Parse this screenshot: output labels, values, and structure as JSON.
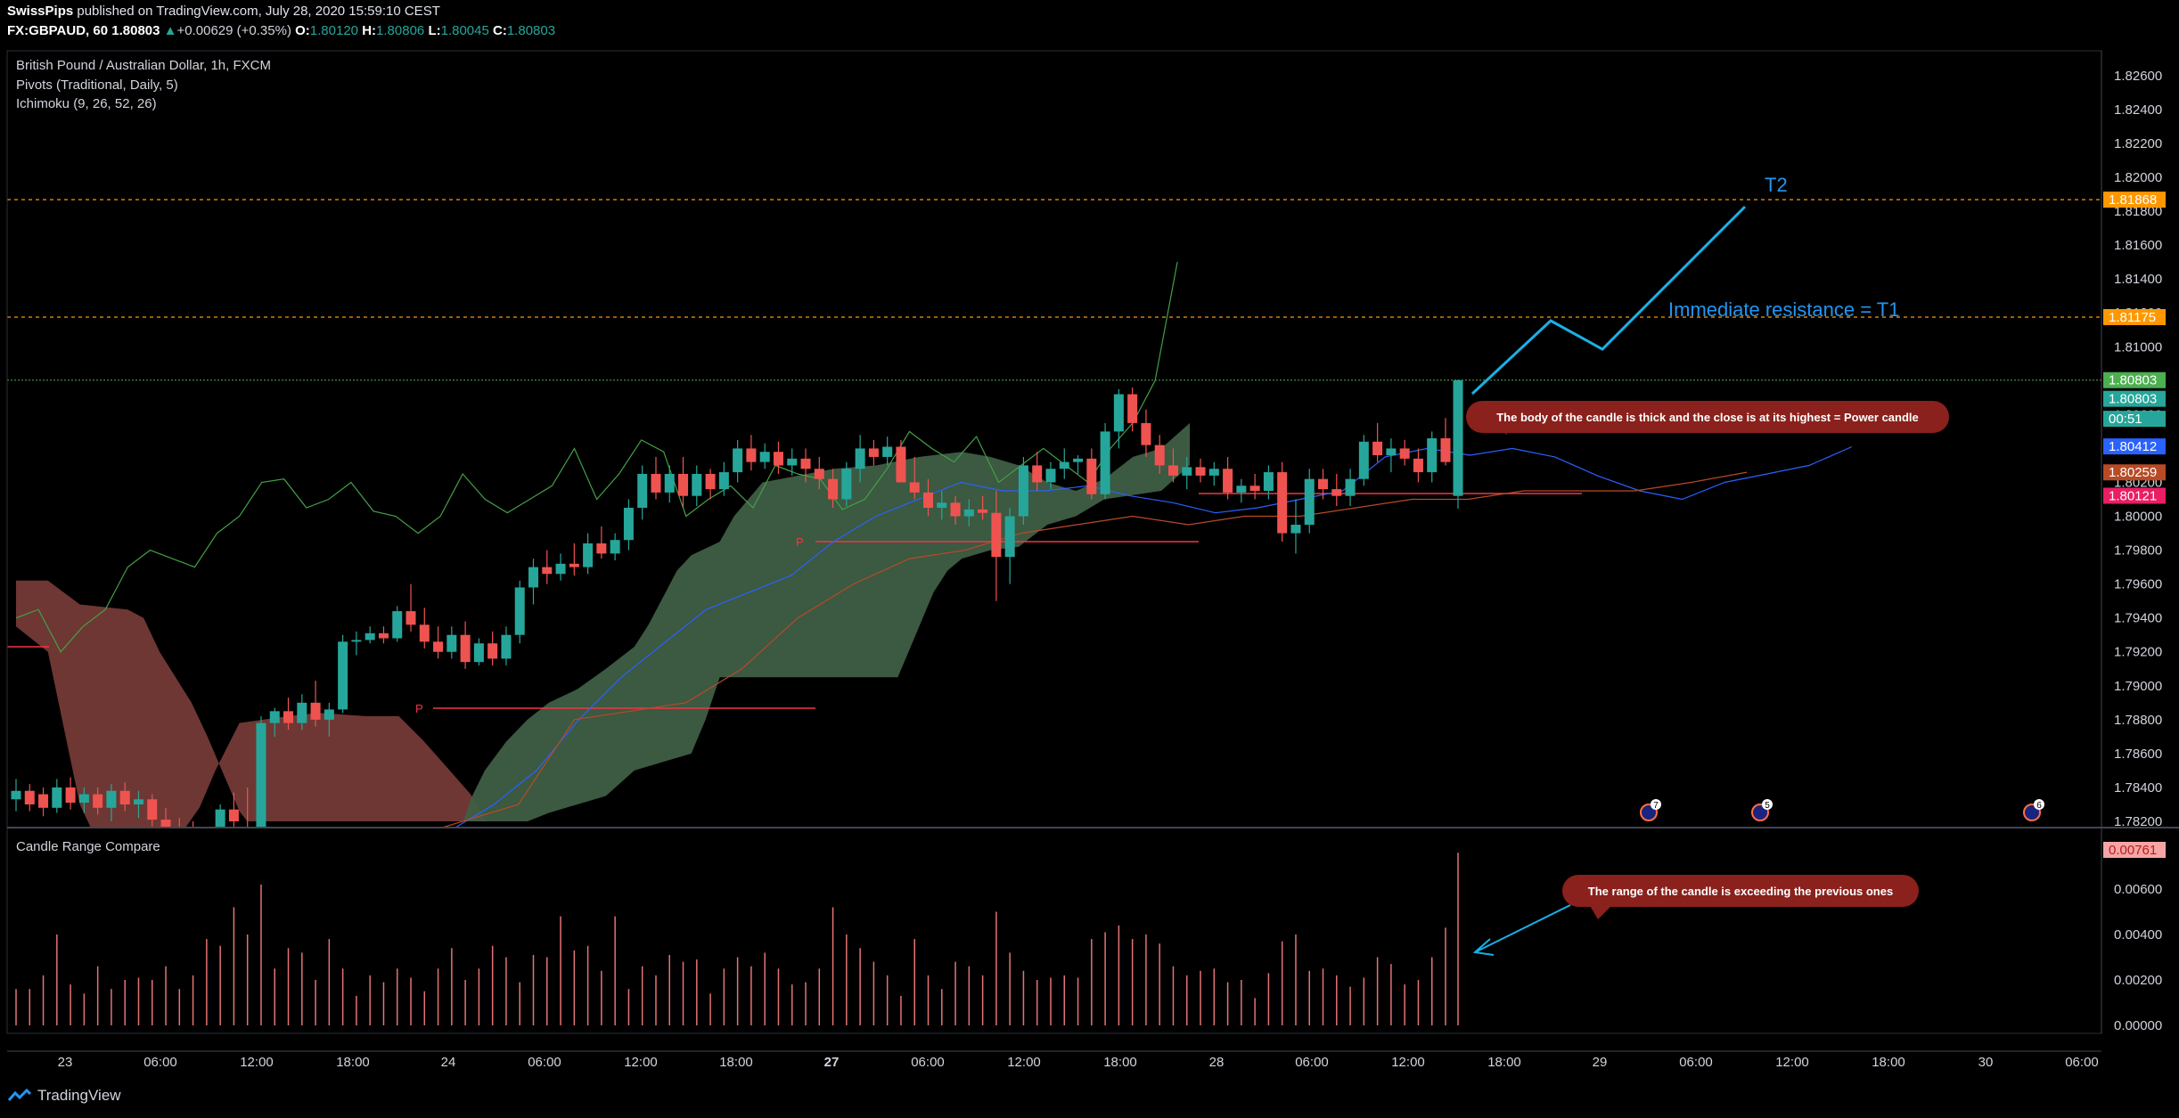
{
  "header": {
    "author": "SwissPips",
    "published_text": "published on TradingView.com, July 28, 2020 15:59:10 CEST",
    "symbol": "FX:GBPAUD, 60",
    "last": "1.80803",
    "change": "+0.00629 (+0.35%)",
    "o_label": "O:",
    "o": "1.80120",
    "h_label": "H:",
    "h": "1.80806",
    "l_label": "L:",
    "l": "1.80045",
    "c_label": "C:",
    "c": "1.80803"
  },
  "legend": {
    "title": "British Pound / Australian Dollar, 1h, FXCM",
    "pivots": "Pivots (Traditional, Daily, 5)",
    "ichimoku": "Ichimoku (9, 26, 52, 26)",
    "lower_title": "Candle Range Compare"
  },
  "colors": {
    "bull": "#26a69a",
    "bear": "#ef5350",
    "tenkan": "#2962ff",
    "kijun": "#b84a26",
    "chikou": "#43a047",
    "cloud_bull": "#3f5e45",
    "cloud_bear": "#7a3d39",
    "annotation_cyan": "#1ab0e6",
    "annotation_text": "#2196f3",
    "callout_bg": "#8a211c",
    "pivot_line": "#f23645",
    "axis_text": "#d1d4dc"
  },
  "footer": {
    "brand": "TradingView",
    "icon": "tradingview-logo-icon"
  },
  "chart_data": [
    {
      "type": "candlestick",
      "title": "British Pound / Australian Dollar, 1h, FXCM",
      "ylim": [
        1.782,
        1.827
      ],
      "y_ticks": [
        "1.82600",
        "1.82400",
        "1.82200",
        "1.82000",
        "1.81800",
        "1.81600",
        "1.81400",
        "1.81200",
        "1.81000",
        "1.80800",
        "1.80600",
        "1.80400",
        "1.80200",
        "1.80000",
        "1.79800",
        "1.79600",
        "1.79400",
        "1.79200",
        "1.79000",
        "1.78800",
        "1.78600",
        "1.78400",
        "1.78200"
      ],
      "x_ticks": [
        "23",
        "06:00",
        "12:00",
        "18:00",
        "24",
        "06:00",
        "12:00",
        "18:00",
        "27",
        "06:00",
        "12:00",
        "18:00",
        "28",
        "06:00",
        "12:00",
        "18:00",
        "29",
        "06:00",
        "12:00",
        "18:00",
        "30",
        "06:00"
      ],
      "price_labels": [
        {
          "value": "1.81868",
          "price": 1.81868,
          "color": "#ff9800"
        },
        {
          "value": "1.81175",
          "price": 1.81175,
          "color": "#ff9800"
        },
        {
          "value": "1.80803",
          "price": 1.80803,
          "color": "#4caf50"
        },
        {
          "value": "1.80803",
          "price": 1.80693,
          "color": "#26a69a"
        },
        {
          "value": "00:51",
          "price": 1.80575,
          "color": "#26a69a"
        },
        {
          "value": "1.80412",
          "price": 1.80412,
          "color": "#2962ff"
        },
        {
          "value": "1.80259",
          "price": 1.80259,
          "color": "#b84a26"
        },
        {
          "value": "1.80121",
          "price": 1.80121,
          "color": "#e91e63"
        }
      ],
      "candles": [
        [
          1.7833,
          1.7845,
          1.7826,
          1.7838
        ],
        [
          1.7838,
          1.7842,
          1.7826,
          1.783
        ],
        [
          1.7836,
          1.784,
          1.7823,
          1.7828
        ],
        [
          1.7828,
          1.7845,
          1.7825,
          1.784
        ],
        [
          1.784,
          1.7846,
          1.7827,
          1.7831
        ],
        [
          1.7831,
          1.784,
          1.7825,
          1.7836
        ],
        [
          1.7836,
          1.784,
          1.7824,
          1.7828
        ],
        [
          1.7828,
          1.7842,
          1.782,
          1.7838
        ],
        [
          1.7838,
          1.7843,
          1.7826,
          1.783
        ],
        [
          1.783,
          1.7838,
          1.7822,
          1.7833
        ],
        [
          1.7833,
          1.7836,
          1.7817,
          1.7821
        ],
        [
          1.7821,
          1.7828,
          1.781,
          1.7815
        ],
        [
          1.7815,
          1.7822,
          1.7805,
          1.7812
        ],
        [
          1.7812,
          1.782,
          1.78,
          1.7805
        ],
        [
          1.7805,
          1.7813,
          1.7798,
          1.781
        ],
        [
          1.781,
          1.783,
          1.7808,
          1.7827
        ],
        [
          1.7827,
          1.7837,
          1.7815,
          1.782
        ],
        [
          1.7815,
          1.784,
          1.7805,
          1.781
        ],
        [
          1.781,
          1.7882,
          1.7808,
          1.7878
        ],
        [
          1.7878,
          1.7887,
          1.787,
          1.7885
        ],
        [
          1.7885,
          1.7893,
          1.7874,
          1.7878
        ],
        [
          1.7878,
          1.7895,
          1.7874,
          1.789
        ],
        [
          1.789,
          1.7903,
          1.7876,
          1.788
        ],
        [
          1.788,
          1.789,
          1.787,
          1.7886
        ],
        [
          1.7886,
          1.793,
          1.7884,
          1.7926
        ],
        [
          1.7926,
          1.7932,
          1.7918,
          1.7927
        ],
        [
          1.7927,
          1.7935,
          1.7925,
          1.7931
        ],
        [
          1.7931,
          1.7935,
          1.7925,
          1.7928
        ],
        [
          1.7928,
          1.7947,
          1.7926,
          1.7944
        ],
        [
          1.7944,
          1.796,
          1.7932,
          1.7936
        ],
        [
          1.7936,
          1.7946,
          1.7922,
          1.7926
        ],
        [
          1.7926,
          1.7935,
          1.7916,
          1.792
        ],
        [
          1.792,
          1.7935,
          1.7916,
          1.793
        ],
        [
          1.793,
          1.7938,
          1.791,
          1.7914
        ],
        [
          1.7914,
          1.7928,
          1.7912,
          1.7925
        ],
        [
          1.7925,
          1.7932,
          1.7912,
          1.7916
        ],
        [
          1.7916,
          1.7935,
          1.7912,
          1.793
        ],
        [
          1.793,
          1.7962,
          1.7925,
          1.7958
        ],
        [
          1.7958,
          1.7975,
          1.7948,
          1.797
        ],
        [
          1.797,
          1.798,
          1.796,
          1.7966
        ],
        [
          1.7966,
          1.7978,
          1.7962,
          1.7972
        ],
        [
          1.7972,
          1.7984,
          1.7965,
          1.797
        ],
        [
          1.797,
          1.799,
          1.7966,
          1.7984
        ],
        [
          1.7984,
          1.7994,
          1.7975,
          1.7978
        ],
        [
          1.7978,
          1.799,
          1.7974,
          1.7986
        ],
        [
          1.7986,
          1.801,
          1.798,
          1.8005
        ],
        [
          1.8005,
          1.803,
          1.7998,
          1.8025
        ],
        [
          1.8025,
          1.8035,
          1.801,
          1.8014
        ],
        [
          1.8014,
          1.803,
          1.8008,
          1.8025
        ],
        [
          1.8025,
          1.8035,
          1.8005,
          1.8012
        ],
        [
          1.8012,
          1.803,
          1.8006,
          1.8025
        ],
        [
          1.8025,
          1.8028,
          1.801,
          1.8016
        ],
        [
          1.8016,
          1.8032,
          1.8012,
          1.8026
        ],
        [
          1.8026,
          1.8045,
          1.802,
          1.804
        ],
        [
          1.804,
          1.8048,
          1.8027,
          1.8032
        ],
        [
          1.8032,
          1.8043,
          1.8028,
          1.8038
        ],
        [
          1.8038,
          1.8044,
          1.8025,
          1.803
        ],
        [
          1.803,
          1.804,
          1.8024,
          1.8034
        ],
        [
          1.8034,
          1.804,
          1.802,
          1.8028
        ],
        [
          1.8028,
          1.8035,
          1.8016,
          1.8022
        ],
        [
          1.8022,
          1.8028,
          1.8005,
          1.801
        ],
        [
          1.801,
          1.8032,
          1.8006,
          1.8028
        ],
        [
          1.8028,
          1.8048,
          1.802,
          1.804
        ],
        [
          1.804,
          1.8045,
          1.803,
          1.8035
        ],
        [
          1.8035,
          1.8047,
          1.803,
          1.8041
        ],
        [
          1.8041,
          1.8045,
          1.802,
          1.802
        ],
        [
          1.802,
          1.8035,
          1.801,
          1.8014
        ],
        [
          1.8014,
          1.8022,
          1.8,
          1.8005
        ],
        [
          1.8005,
          1.8015,
          1.7998,
          1.8008
        ],
        [
          1.8008,
          1.8012,
          1.7995,
          1.8
        ],
        [
          1.8,
          1.801,
          1.7994,
          1.8004
        ],
        [
          1.8004,
          1.8012,
          1.7998,
          1.8002
        ],
        [
          1.8002,
          1.8015,
          1.795,
          1.7976
        ],
        [
          1.7976,
          1.8005,
          1.796,
          1.8
        ],
        [
          1.8,
          1.8035,
          1.7995,
          1.803
        ],
        [
          1.803,
          1.8038,
          1.8015,
          1.802
        ],
        [
          1.802,
          1.8032,
          1.8016,
          1.8028
        ],
        [
          1.8028,
          1.804,
          1.8022,
          1.8032
        ],
        [
          1.8032,
          1.8036,
          1.8025,
          1.8034
        ],
        [
          1.8034,
          1.804,
          1.801,
          1.8013
        ],
        [
          1.8013,
          1.8055,
          1.801,
          1.805
        ],
        [
          1.805,
          1.8075,
          1.804,
          1.8072
        ],
        [
          1.8072,
          1.8076,
          1.805,
          1.8055
        ],
        [
          1.8055,
          1.8063,
          1.8035,
          1.8042
        ],
        [
          1.8042,
          1.8048,
          1.8025,
          1.803
        ],
        [
          1.803,
          1.804,
          1.802,
          1.8024
        ],
        [
          1.8024,
          1.8035,
          1.8016,
          1.8029
        ],
        [
          1.8029,
          1.8034,
          1.802,
          1.8024
        ],
        [
          1.8024,
          1.8032,
          1.8018,
          1.8028
        ],
        [
          1.8028,
          1.8035,
          1.801,
          1.8014
        ],
        [
          1.8014,
          1.8022,
          1.8008,
          1.8018
        ],
        [
          1.8018,
          1.8025,
          1.801,
          1.8015
        ],
        [
          1.8015,
          1.803,
          1.801,
          1.8026
        ],
        [
          1.8026,
          1.8032,
          1.7985,
          1.799
        ],
        [
          1.799,
          1.801,
          1.7978,
          1.7995
        ],
        [
          1.7995,
          1.8028,
          1.799,
          1.8022
        ],
        [
          1.8022,
          1.8028,
          1.801,
          1.8016
        ],
        [
          1.8016,
          1.8025,
          1.8006,
          1.8012
        ],
        [
          1.8012,
          1.8028,
          1.8006,
          1.8022
        ],
        [
          1.8022,
          1.8048,
          1.8018,
          1.8044
        ],
        [
          1.8044,
          1.8055,
          1.8032,
          1.8036
        ],
        [
          1.8036,
          1.8046,
          1.8026,
          1.804
        ],
        [
          1.804,
          1.8045,
          1.803,
          1.8034
        ],
        [
          1.8034,
          1.804,
          1.802,
          1.8026
        ],
        [
          1.8026,
          1.805,
          1.802,
          1.8046
        ],
        [
          1.8046,
          1.8058,
          1.803,
          1.8032
        ],
        [
          1.8012,
          1.80806,
          1.80045,
          1.80803
        ]
      ],
      "annotations": [
        {
          "text": "T2",
          "price": 1.8194
        },
        {
          "text": "Immediate resistance = T1",
          "price": 1.8119
        },
        {
          "text": "The body of the candle is thick and the close is at its highest = Power candle"
        }
      ]
    },
    {
      "type": "histogram",
      "title": "Candle Range Compare",
      "ylim": [
        -0.0005,
        0.008
      ],
      "y_ticks": [
        "0.00600",
        "0.00400",
        "0.00200",
        "0.00000"
      ],
      "last_value": "0.00761",
      "values": [
        0.0016,
        0.0016,
        0.0022,
        0.004,
        0.0018,
        0.0014,
        0.0026,
        0.0016,
        0.002,
        0.0021,
        0.002,
        0.0026,
        0.0016,
        0.0022,
        0.0038,
        0.0035,
        0.0052,
        0.004,
        0.0062,
        0.0025,
        0.0034,
        0.0032,
        0.002,
        0.0038,
        0.0025,
        0.0013,
        0.0022,
        0.0019,
        0.0025,
        0.0021,
        0.0015,
        0.0025,
        0.0034,
        0.002,
        0.0025,
        0.0035,
        0.003,
        0.0019,
        0.0031,
        0.003,
        0.0048,
        0.0033,
        0.0035,
        0.0024,
        0.0048,
        0.0016,
        0.0026,
        0.0022,
        0.0031,
        0.0028,
        0.0029,
        0.0014,
        0.0025,
        0.003,
        0.0026,
        0.0032,
        0.0025,
        0.0018,
        0.0019,
        0.0025,
        0.0052,
        0.004,
        0.0034,
        0.0028,
        0.0022,
        0.0013,
        0.0038,
        0.0022,
        0.0016,
        0.0028,
        0.0026,
        0.0022,
        0.005,
        0.0032,
        0.0024,
        0.002,
        0.0021,
        0.0022,
        0.0021,
        0.0038,
        0.0041,
        0.0044,
        0.0038,
        0.004,
        0.0036,
        0.0026,
        0.0022,
        0.0024,
        0.0025,
        0.0019,
        0.002,
        0.0012,
        0.0023,
        0.0037,
        0.004,
        0.0024,
        0.0025,
        0.0022,
        0.0017,
        0.0021,
        0.003,
        0.0027,
        0.0018,
        0.002,
        0.003,
        0.0043,
        0.0076
      ],
      "annotations": [
        {
          "text": "The range of the candle is exceeding the previous ones"
        }
      ]
    }
  ]
}
